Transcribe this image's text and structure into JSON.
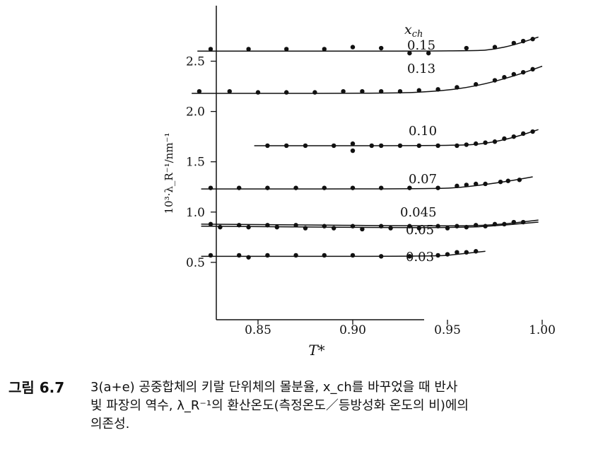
{
  "chart_data": {
    "type": "scatter",
    "xlabel": "T*",
    "ylabel": "10³·λ_R⁻¹/nm⁻¹",
    "xlim": [
      0.8,
      1.0
    ],
    "ylim": [
      0.0,
      2.95
    ],
    "x_ticks": [
      "0.85",
      "0.90",
      "0.95",
      "1.00"
    ],
    "y_ticks": [
      "0.5",
      "1.0",
      "1.5",
      "2.0",
      "2.5"
    ],
    "legend_title": "x_ch",
    "grid": false,
    "series": [
      {
        "name": "0.15",
        "points": [
          [
            0.825,
            2.62
          ],
          [
            0.845,
            2.62
          ],
          [
            0.865,
            2.62
          ],
          [
            0.885,
            2.62
          ],
          [
            0.9,
            2.64
          ],
          [
            0.915,
            2.63
          ],
          [
            0.93,
            2.58
          ],
          [
            0.94,
            2.58
          ],
          [
            0.96,
            2.63
          ],
          [
            0.975,
            2.64
          ],
          [
            0.985,
            2.68
          ],
          [
            0.99,
            2.7
          ],
          [
            0.995,
            2.72
          ]
        ],
        "curve": [
          [
            0.818,
            2.6
          ],
          [
            0.965,
            2.6
          ],
          [
            0.975,
            2.62
          ],
          [
            0.985,
            2.66
          ],
          [
            0.998,
            2.74
          ]
        ]
      },
      {
        "name": "0.13",
        "points": [
          [
            0.819,
            2.2
          ],
          [
            0.835,
            2.2
          ],
          [
            0.85,
            2.19
          ],
          [
            0.865,
            2.19
          ],
          [
            0.88,
            2.19
          ],
          [
            0.895,
            2.2
          ],
          [
            0.905,
            2.2
          ],
          [
            0.915,
            2.2
          ],
          [
            0.925,
            2.2
          ],
          [
            0.935,
            2.21
          ],
          [
            0.945,
            2.22
          ],
          [
            0.955,
            2.24
          ],
          [
            0.965,
            2.27
          ],
          [
            0.975,
            2.31
          ],
          [
            0.98,
            2.34
          ],
          [
            0.985,
            2.37
          ],
          [
            0.99,
            2.39
          ],
          [
            0.995,
            2.42
          ]
        ],
        "curve": [
          [
            0.815,
            2.18
          ],
          [
            0.92,
            2.18
          ],
          [
            0.945,
            2.2
          ],
          [
            0.965,
            2.25
          ],
          [
            0.985,
            2.35
          ],
          [
            1.0,
            2.45
          ]
        ]
      },
      {
        "name": "0.10",
        "points": [
          [
            0.855,
            1.66
          ],
          [
            0.865,
            1.66
          ],
          [
            0.875,
            1.66
          ],
          [
            0.89,
            1.66
          ],
          [
            0.9,
            1.68
          ],
          [
            0.9,
            1.61
          ],
          [
            0.91,
            1.66
          ],
          [
            0.915,
            1.66
          ],
          [
            0.925,
            1.66
          ],
          [
            0.935,
            1.66
          ],
          [
            0.945,
            1.66
          ],
          [
            0.955,
            1.66
          ],
          [
            0.96,
            1.67
          ],
          [
            0.965,
            1.68
          ],
          [
            0.97,
            1.69
          ],
          [
            0.975,
            1.7
          ],
          [
            0.98,
            1.73
          ],
          [
            0.985,
            1.75
          ],
          [
            0.99,
            1.78
          ],
          [
            0.995,
            1.8
          ]
        ],
        "curve": [
          [
            0.848,
            1.66
          ],
          [
            0.955,
            1.66
          ],
          [
            0.97,
            1.68
          ],
          [
            0.985,
            1.74
          ],
          [
            0.998,
            1.82
          ]
        ]
      },
      {
        "name": "0.07",
        "points": [
          [
            0.825,
            1.24
          ],
          [
            0.84,
            1.24
          ],
          [
            0.855,
            1.24
          ],
          [
            0.87,
            1.24
          ],
          [
            0.885,
            1.24
          ],
          [
            0.9,
            1.24
          ],
          [
            0.915,
            1.24
          ],
          [
            0.93,
            1.24
          ],
          [
            0.945,
            1.24
          ],
          [
            0.955,
            1.26
          ],
          [
            0.96,
            1.27
          ],
          [
            0.965,
            1.28
          ],
          [
            0.97,
            1.28
          ],
          [
            0.978,
            1.3
          ],
          [
            0.982,
            1.31
          ],
          [
            0.988,
            1.32
          ]
        ],
        "curve": [
          [
            0.82,
            1.23
          ],
          [
            0.945,
            1.23
          ],
          [
            0.96,
            1.25
          ],
          [
            0.98,
            1.3
          ],
          [
            0.995,
            1.35
          ]
        ]
      },
      {
        "name": "0.045",
        "points": [
          [
            0.825,
            0.88
          ],
          [
            0.84,
            0.87
          ],
          [
            0.855,
            0.87
          ],
          [
            0.87,
            0.87
          ],
          [
            0.885,
            0.86
          ],
          [
            0.9,
            0.86
          ],
          [
            0.915,
            0.86
          ],
          [
            0.93,
            0.86
          ],
          [
            0.945,
            0.86
          ],
          [
            0.955,
            0.86
          ],
          [
            0.965,
            0.87
          ],
          [
            0.975,
            0.88
          ],
          [
            0.985,
            0.9
          ]
        ],
        "curve": [
          [
            0.82,
            0.88
          ],
          [
            0.95,
            0.86
          ],
          [
            0.975,
            0.87
          ],
          [
            0.998,
            0.92
          ]
        ]
      },
      {
        "name": "0.05",
        "points": [
          [
            0.83,
            0.85
          ],
          [
            0.845,
            0.85
          ],
          [
            0.86,
            0.85
          ],
          [
            0.875,
            0.84
          ],
          [
            0.89,
            0.84
          ],
          [
            0.905,
            0.83
          ],
          [
            0.92,
            0.84
          ],
          [
            0.935,
            0.84
          ],
          [
            0.95,
            0.84
          ],
          [
            0.96,
            0.85
          ],
          [
            0.97,
            0.86
          ],
          [
            0.98,
            0.88
          ],
          [
            0.99,
            0.9
          ]
        ],
        "curve": [
          [
            0.82,
            0.86
          ],
          [
            0.955,
            0.84
          ],
          [
            0.98,
            0.87
          ],
          [
            0.998,
            0.9
          ]
        ]
      },
      {
        "name": "0.03",
        "points": [
          [
            0.825,
            0.57
          ],
          [
            0.84,
            0.57
          ],
          [
            0.845,
            0.55
          ],
          [
            0.855,
            0.57
          ],
          [
            0.87,
            0.57
          ],
          [
            0.885,
            0.57
          ],
          [
            0.9,
            0.57
          ],
          [
            0.915,
            0.56
          ],
          [
            0.93,
            0.56
          ],
          [
            0.945,
            0.57
          ],
          [
            0.95,
            0.58
          ],
          [
            0.955,
            0.6
          ],
          [
            0.96,
            0.6
          ],
          [
            0.965,
            0.61
          ]
        ],
        "curve": [
          [
            0.82,
            0.56
          ],
          [
            0.945,
            0.56
          ],
          [
            0.955,
            0.58
          ],
          [
            0.97,
            0.61
          ]
        ]
      }
    ]
  },
  "caption": {
    "label": "그림 6.7",
    "lines": [
      "3(a+e) 공중합체의 키랄 단위체의 몰분율, x_ch를 바꾸었을 때 반사",
      "빛 파장의 역수, λ_R⁻¹의 환산온도(측정온도／등방성화 온도의 비)에의",
      "의존성."
    ]
  }
}
